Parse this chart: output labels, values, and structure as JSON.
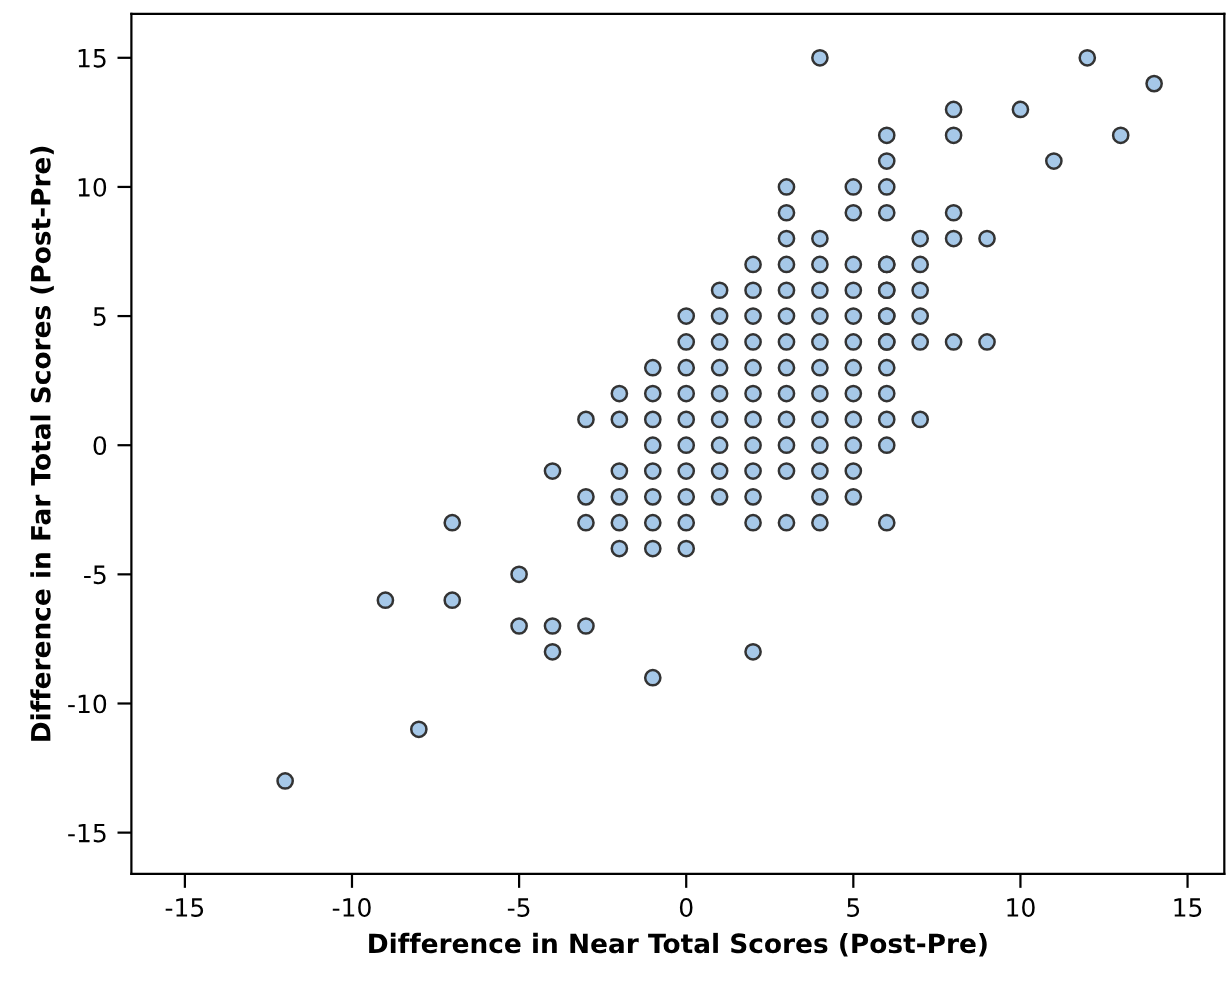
{
  "chart_data": {
    "type": "scatter",
    "xlabel": "Difference in Near Total Scores (Post-Pre)",
    "ylabel": "Difference in Far Total Scores (Post-Pre)",
    "xlim": [
      -16.6,
      16.1
    ],
    "ylim": [
      -16.6,
      16.7
    ],
    "xticks": [
      -15,
      -10,
      -5,
      0,
      5,
      10,
      15
    ],
    "yticks": [
      -15,
      -10,
      -5,
      0,
      5,
      10,
      15
    ],
    "grid": false,
    "marker": "circle",
    "series": [
      {
        "color": "#a6c8e8",
        "x": [
          4,
          6,
          6,
          3,
          5,
          6,
          3,
          5,
          6,
          3,
          4,
          2,
          3,
          4,
          5,
          6,
          1,
          2,
          3,
          4,
          5,
          6,
          0,
          1,
          2,
          3,
          4,
          5,
          6,
          0,
          1,
          2,
          3,
          4,
          5,
          6,
          -1,
          0,
          1,
          2,
          3,
          4,
          5,
          6,
          -2,
          -1,
          0,
          1,
          2,
          3,
          4,
          5,
          6,
          -3,
          -2,
          -1,
          0,
          1,
          2,
          3,
          4,
          5,
          6,
          -1,
          0,
          1,
          2,
          3,
          4,
          5,
          6,
          -4,
          -2,
          -1,
          0,
          1,
          2,
          3,
          4,
          5,
          -3,
          -2,
          -1,
          0,
          1,
          2,
          4,
          5,
          -3,
          -2,
          -1,
          0,
          2,
          3,
          4,
          6,
          -2,
          -1,
          0,
          -5,
          -5,
          -4,
          -3,
          -4,
          -1,
          2,
          12,
          14,
          8,
          10,
          8,
          13,
          11,
          8,
          7,
          8,
          9,
          7,
          7,
          7,
          7,
          8,
          9,
          7,
          -7,
          -9,
          -7,
          -8,
          -12,
          6,
          6,
          6,
          6
        ],
        "values": [
          15,
          12,
          11,
          10,
          10,
          10,
          9,
          9,
          9,
          8,
          8,
          7,
          7,
          7,
          7,
          7,
          6,
          6,
          6,
          6,
          6,
          6,
          5,
          5,
          5,
          5,
          5,
          5,
          5,
          4,
          4,
          4,
          4,
          4,
          4,
          4,
          3,
          3,
          3,
          3,
          3,
          3,
          3,
          3,
          2,
          2,
          2,
          2,
          2,
          2,
          2,
          2,
          2,
          1,
          1,
          1,
          1,
          1,
          1,
          1,
          1,
          1,
          1,
          0,
          0,
          0,
          0,
          0,
          0,
          0,
          0,
          -1,
          -1,
          -1,
          -1,
          -1,
          -1,
          -1,
          -1,
          -1,
          -2,
          -2,
          -2,
          -2,
          -2,
          -2,
          -2,
          -2,
          -3,
          -3,
          -3,
          -3,
          -3,
          -3,
          -3,
          -3,
          -4,
          -4,
          -4,
          -5,
          -7,
          -7,
          -7,
          -8,
          -9,
          -8,
          15,
          14,
          13,
          13,
          12,
          12,
          11,
          9,
          8,
          8,
          8,
          7,
          6,
          5,
          4,
          4,
          4,
          1,
          -3,
          -6,
          -6,
          -11,
          -13,
          4,
          5,
          6,
          7
        ]
      }
    ]
  }
}
